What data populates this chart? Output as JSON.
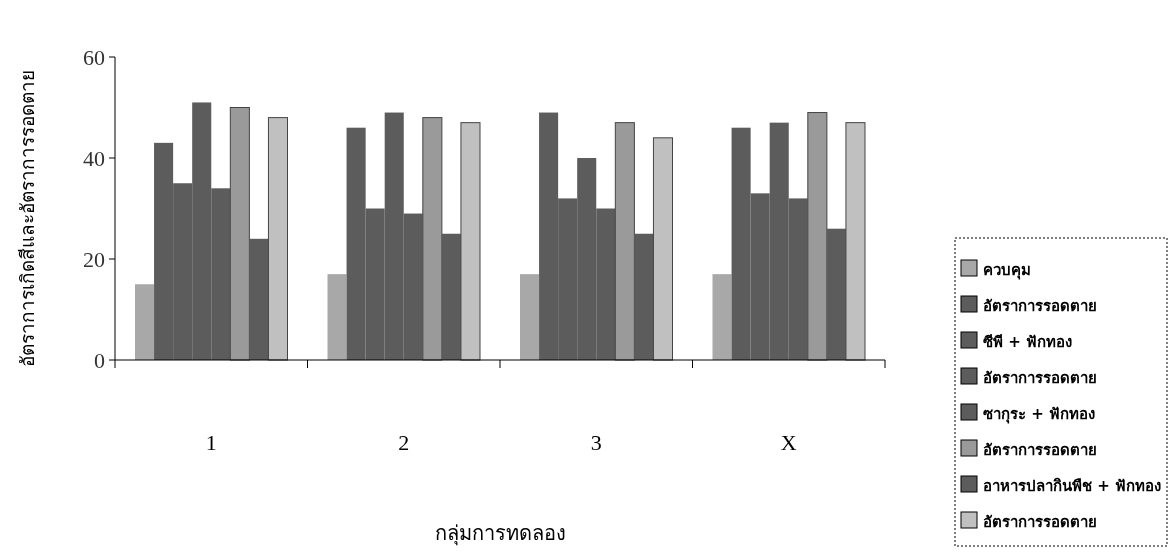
{
  "chart_data": {
    "type": "bar",
    "xlabel": "กลุ่มการทดลอง",
    "ylabel": "อัตราการเกิดสีและอัตราการรอดตาย",
    "categories": [
      "1",
      "2",
      "3",
      "X"
    ],
    "ylim": [
      0,
      60
    ],
    "yticks": [
      0,
      20,
      40,
      60
    ],
    "legend": "right",
    "series": [
      {
        "name": "ควบคุม",
        "color": "#a8a8a8",
        "values": [
          15,
          17,
          17,
          17
        ]
      },
      {
        "name": "อัตราการรอดตาย",
        "color": "#5c5c5c",
        "values": [
          43,
          46,
          49,
          46
        ]
      },
      {
        "name": "ซีพี + ฟักทอง",
        "color": "#5c5c5c",
        "values": [
          35,
          30,
          32,
          33
        ]
      },
      {
        "name": "อัตราการรอดตาย",
        "color": "#5c5c5c",
        "values": [
          51,
          49,
          40,
          47
        ]
      },
      {
        "name": "ซากุระ + ฟักทอง",
        "color": "#5c5c5c",
        "values": [
          34,
          29,
          30,
          32
        ]
      },
      {
        "name": "อัตราการรอดตาย",
        "color": "#9a9a9a",
        "values": [
          50,
          48,
          47,
          49
        ]
      },
      {
        "name": "อาหารปลากินพืช + ฟักทอง",
        "color": "#5c5c5c",
        "values": [
          24,
          25,
          25,
          26
        ]
      },
      {
        "name": "อัตราการรอดตาย",
        "color": "#c0c0c0",
        "values": [
          48,
          47,
          44,
          47
        ]
      }
    ]
  }
}
